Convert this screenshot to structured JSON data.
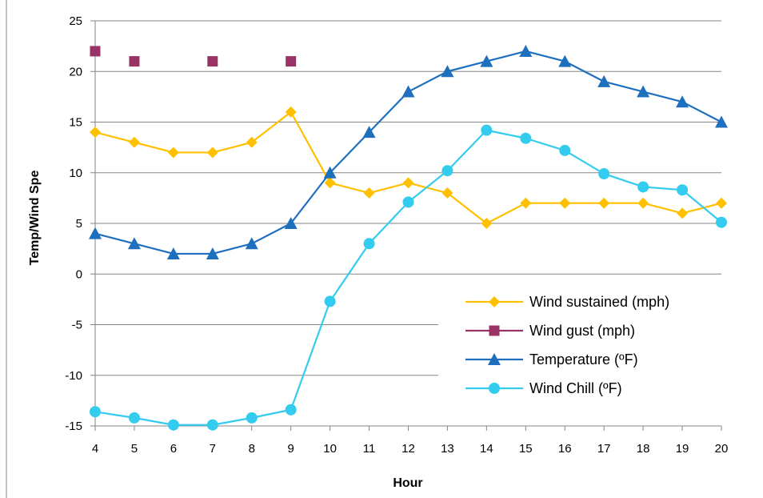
{
  "colors": {
    "wind_sustained": "#FFC000",
    "wind_gust": "#993366",
    "temperature": "#1F6FBF",
    "wind_chill": "#33CCEE",
    "grid": "#868686",
    "axis": "#868686"
  },
  "chart_data": {
    "type": "line",
    "title": "",
    "xlabel": "Hour",
    "ylabel": "Temp/Wind Spe",
    "x": [
      4,
      5,
      6,
      7,
      8,
      9,
      10,
      11,
      12,
      13,
      14,
      15,
      16,
      17,
      18,
      19,
      20
    ],
    "x_tick_labels": [
      "4",
      "5",
      "6",
      "7",
      "8",
      "9",
      "10",
      "11",
      "12",
      "13",
      "14",
      "15",
      "16",
      "17",
      "18",
      "19",
      "20"
    ],
    "ylim": [
      -15,
      25
    ],
    "y_ticks": [
      -15,
      -10,
      -5,
      0,
      5,
      10,
      15,
      20,
      25
    ],
    "y_tick_labels": [
      "-15",
      "-10",
      "-5",
      "0",
      "5",
      "10",
      "15",
      "20",
      "25"
    ],
    "grid": "horizontal major gridlines",
    "legend_position": "right, lower-middle",
    "series": [
      {
        "name": "Wind sustained (mph)",
        "marker": "diamond",
        "line": true,
        "color_key": "wind_sustained",
        "values": [
          14,
          13,
          12,
          12,
          13,
          16,
          9,
          8,
          9,
          8,
          5,
          7,
          7,
          7,
          7,
          6,
          7
        ]
      },
      {
        "name": "Wind gust (mph)",
        "marker": "square",
        "line": false,
        "color_key": "wind_gust",
        "points": [
          [
            4,
            22
          ],
          [
            5,
            21
          ],
          [
            7,
            21
          ],
          [
            9,
            21
          ]
        ]
      },
      {
        "name": "Temperature (ºF)",
        "marker": "triangle",
        "line": true,
        "color_key": "temperature",
        "values": [
          4,
          3,
          2,
          2,
          3,
          5,
          10,
          14,
          18,
          20,
          21,
          22,
          21,
          19,
          18,
          17,
          15
        ]
      },
      {
        "name": "Wind Chill (ºF)",
        "marker": "circle",
        "line": true,
        "color_key": "wind_chill",
        "values": [
          -13.6,
          -14.2,
          -14.9,
          -14.9,
          -14.2,
          -13.4,
          -2.7,
          3,
          7.1,
          10.2,
          14.2,
          13.4,
          12.2,
          9.9,
          8.6,
          8.3,
          5.1
        ]
      }
    ]
  }
}
